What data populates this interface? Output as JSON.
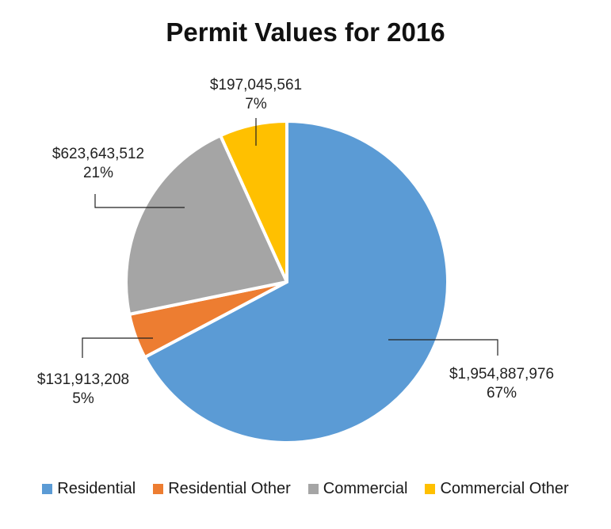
{
  "chart_data": {
    "type": "pie",
    "title": "Permit Values for 2016",
    "categories": [
      "Residential",
      "Residential Other",
      "Commercial",
      "Commercial Other"
    ],
    "values": [
      1954887976,
      131913208,
      623643512,
      197045561
    ],
    "value_labels": [
      "$1,954,887,976",
      "$131,913,208",
      "$623,643,512",
      "$197,045,561"
    ],
    "percent_labels": [
      "67%",
      "5%",
      "21%",
      "7%"
    ],
    "colors": [
      "#5b9bd5",
      "#ed7d31",
      "#a5a5a5",
      "#ffc000"
    ],
    "legend_position": "bottom"
  }
}
